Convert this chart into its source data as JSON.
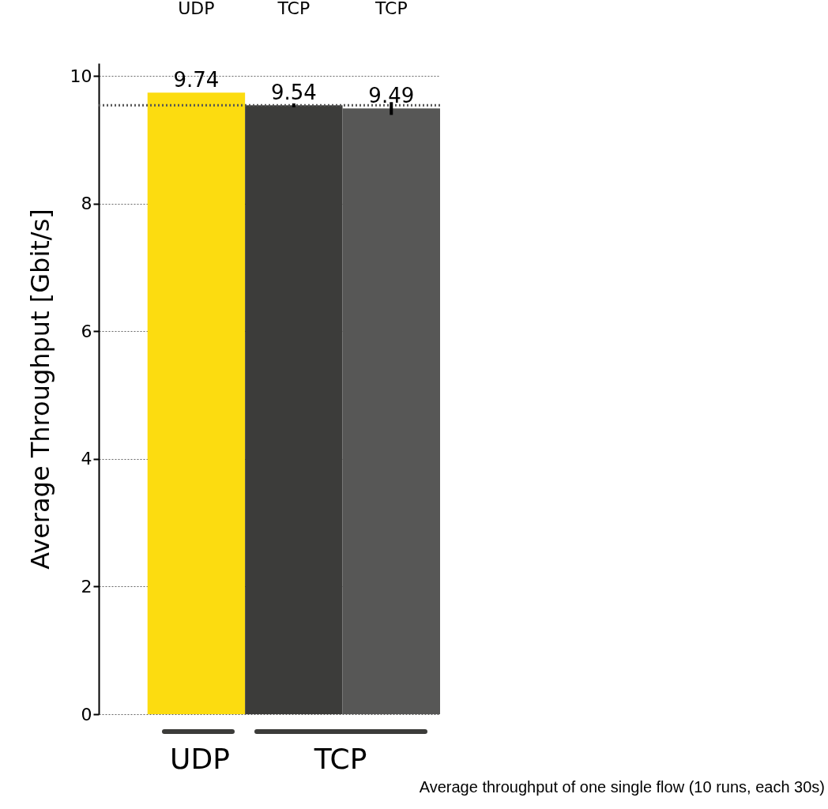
{
  "chart_data": {
    "type": "bar",
    "ylabel": "Average Throughput [Gbit/s]",
    "categories": [
      "UDP",
      "TCP",
      "TCP"
    ],
    "values": [
      9.74,
      9.54,
      9.49
    ],
    "colors": [
      "#fcdc10",
      "#3c3c3a",
      "#575756"
    ],
    "errors": [
      null,
      0.03,
      0.1
    ],
    "data_labels": true,
    "ylim": [
      0,
      10.2
    ],
    "yticks": [
      0,
      2,
      4,
      6,
      8,
      10
    ],
    "grid": "y",
    "ref_lines": [
      {
        "axis": "y",
        "value": 9.54,
        "line_style": "dotted",
        "color": "#555555"
      }
    ],
    "annotations": [
      "UDP",
      "TCP",
      "Average throughput of one single flow (10 runs, each 30s)"
    ]
  }
}
